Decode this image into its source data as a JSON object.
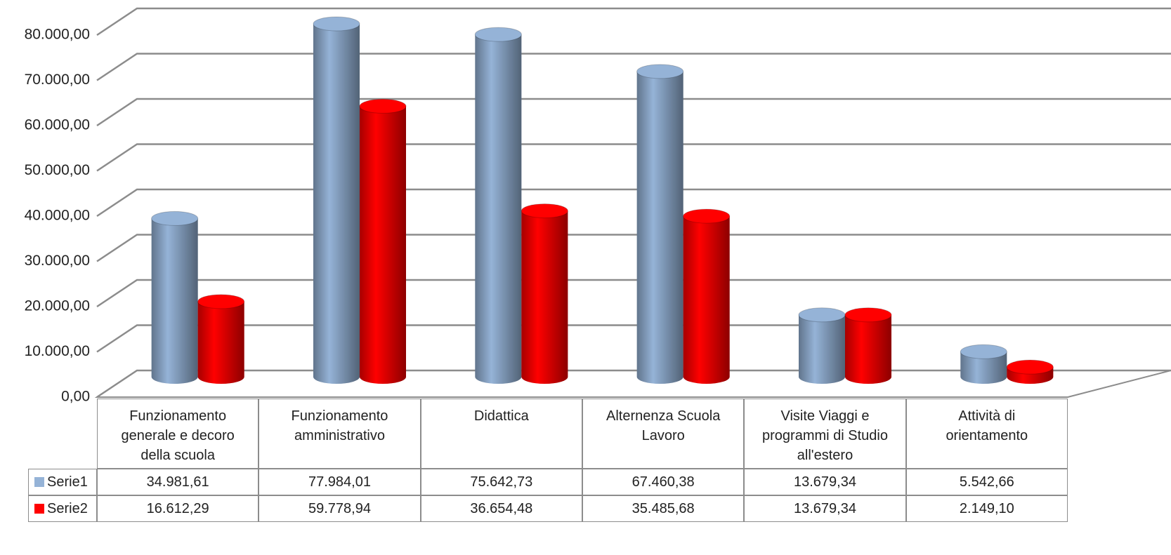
{
  "chart_data": {
    "type": "bar",
    "categories": [
      "Funzionamento generale e decoro della scuola",
      "Funzionamento amministrativo",
      "Didattica",
      "Alternenza Scuola Lavoro",
      "Visite Viaggi e programmi di Studio all'estero",
      "Attività di orientamento"
    ],
    "series": [
      {
        "name": "Serie1",
        "color": "#95b3d7",
        "values": [
          34981.61,
          77984.01,
          75642.73,
          67460.38,
          13679.34,
          5542.66
        ],
        "value_labels": [
          "34.981,61",
          "77.984,01",
          "75.642,73",
          "67.460,38",
          "13.679,34",
          "5.542,66"
        ]
      },
      {
        "name": "Serie2",
        "color": "#ff0000",
        "values": [
          16612.29,
          59778.94,
          36654.48,
          35485.68,
          13679.34,
          2149.1
        ],
        "value_labels": [
          "16.612,29",
          "59.778,94",
          "36.654,48",
          "35.485,68",
          "13.679,34",
          "2.149,10"
        ]
      }
    ],
    "ylim": [
      0,
      80000
    ],
    "yticks": [
      {
        "value": 0,
        "label": "0,00"
      },
      {
        "value": 10000,
        "label": "10.000,00"
      },
      {
        "value": 20000,
        "label": "20.000,00"
      },
      {
        "value": 30000,
        "label": "30.000,00"
      },
      {
        "value": 40000,
        "label": "40.000,00"
      },
      {
        "value": 50000,
        "label": "50.000,00"
      },
      {
        "value": 60000,
        "label": "60.000,00"
      },
      {
        "value": 70000,
        "label": "70.000,00"
      },
      {
        "value": 80000,
        "label": "80.000,00"
      }
    ],
    "grid": true,
    "legend": "table"
  }
}
